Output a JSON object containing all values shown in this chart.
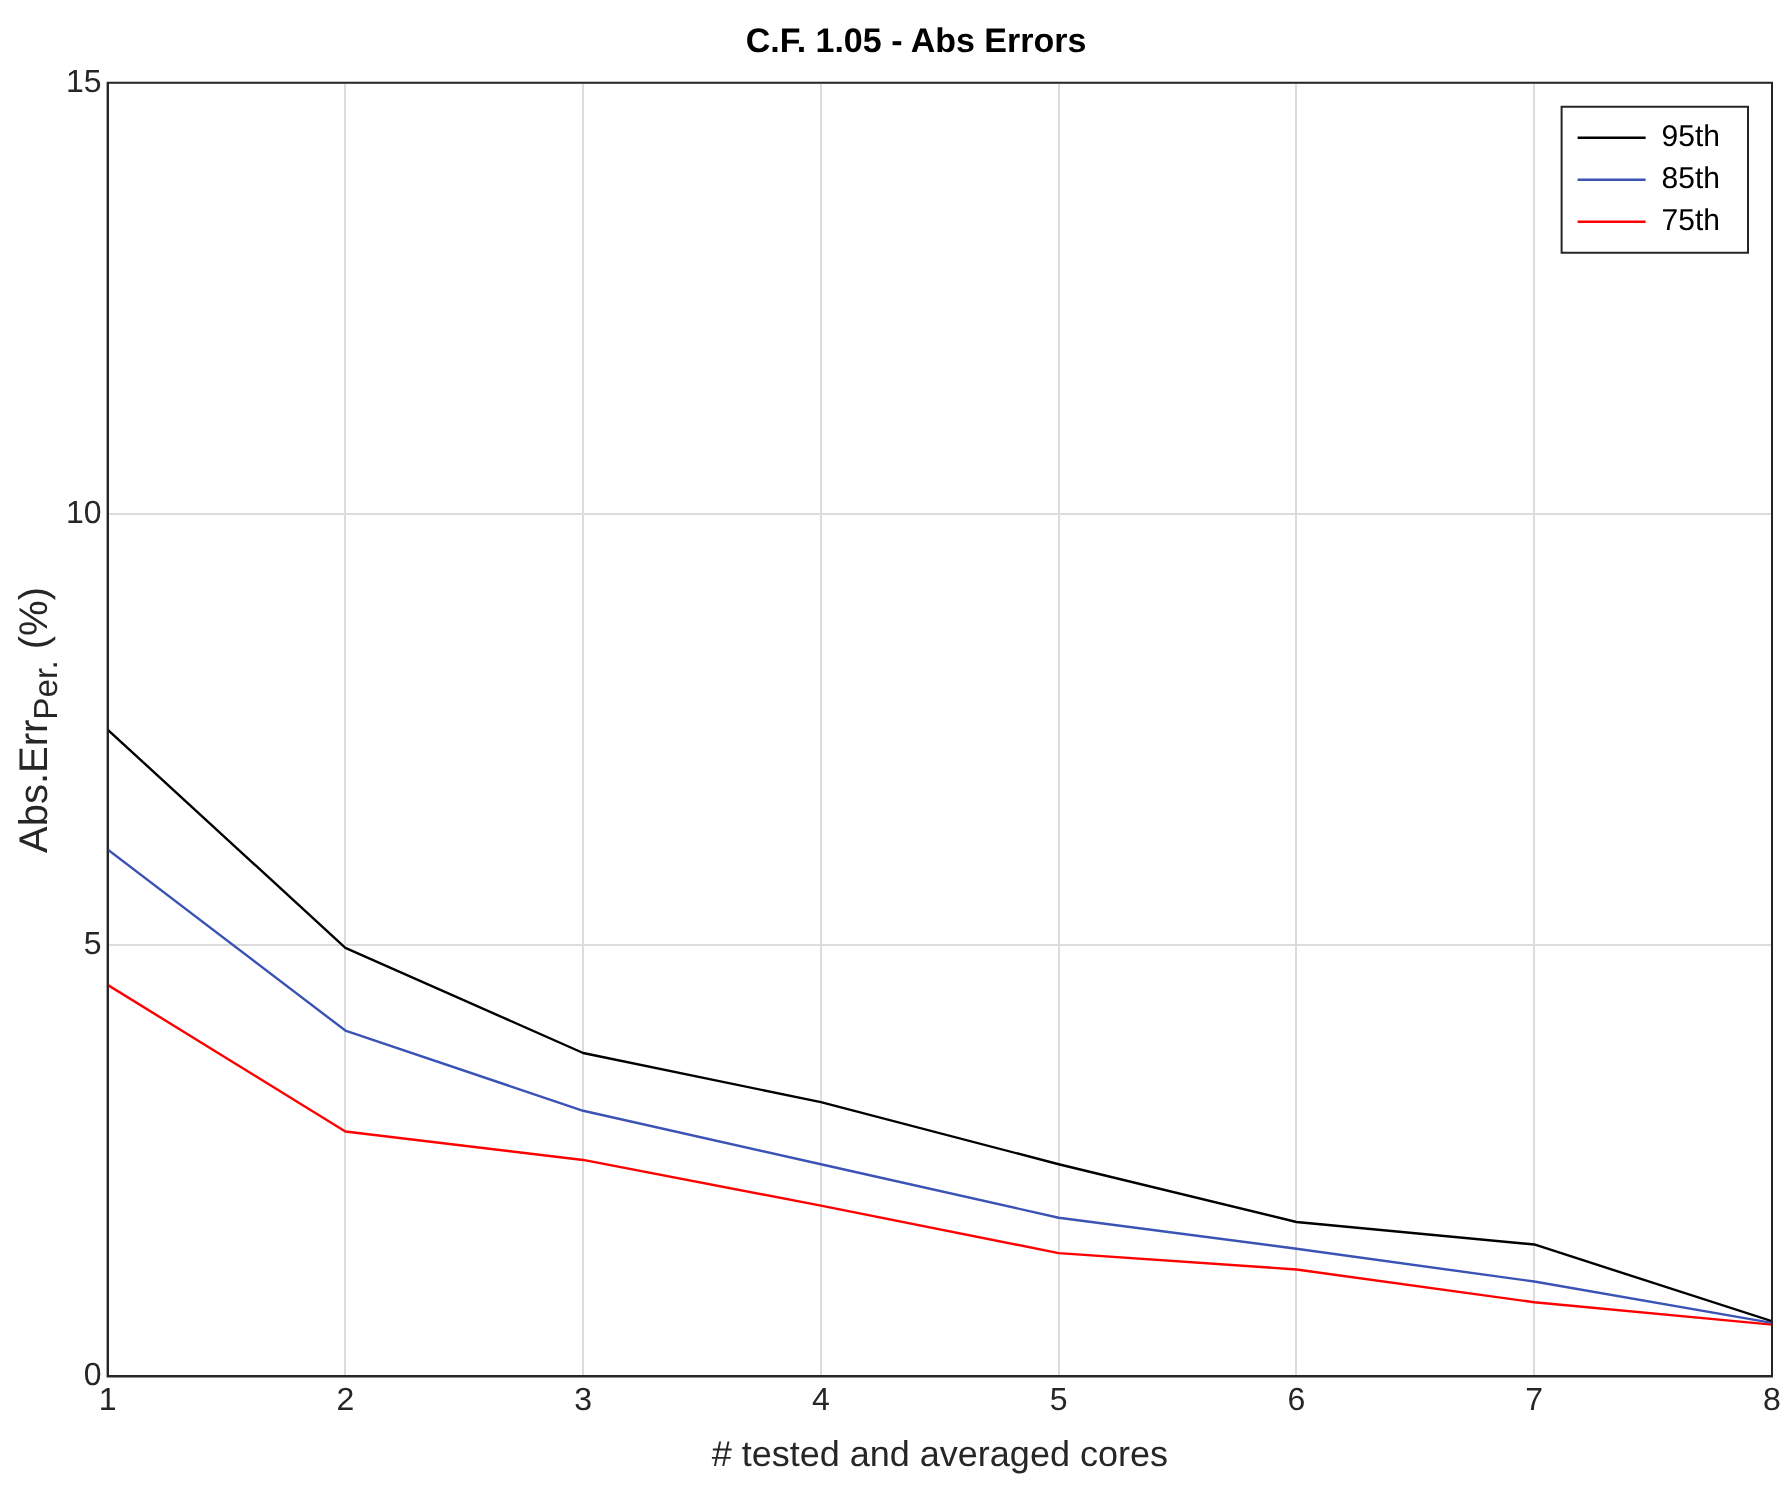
{
  "chart_data": {
    "type": "line",
    "title": "C.F. 1.05 - Abs Errors",
    "xlabel": "# tested and averaged cores",
    "ylabel": "Abs.Err$_{Per.}$ (%)",
    "x": [
      1,
      2,
      3,
      4,
      5,
      6,
      7,
      8
    ],
    "series": [
      {
        "name": "95th",
        "color": "#000000",
        "values": [
          7.5,
          4.97,
          3.75,
          3.18,
          2.46,
          1.79,
          1.53,
          0.64
        ]
      },
      {
        "name": "85th",
        "color": "#3a53b5",
        "values": [
          6.11,
          4.01,
          3.08,
          2.46,
          1.84,
          1.48,
          1.1,
          0.62
        ]
      },
      {
        "name": "75th",
        "color": "#ff0000",
        "values": [
          4.54,
          2.84,
          2.51,
          1.98,
          1.43,
          1.24,
          0.86,
          0.6
        ]
      }
    ],
    "xlim": [
      1,
      8
    ],
    "xticks": [
      1,
      2,
      3,
      4,
      5,
      6,
      7,
      8
    ],
    "ylim": [
      0,
      15
    ],
    "yticks": [
      0,
      5,
      10,
      15
    ],
    "grid": true,
    "legend": "top right",
    "marker": "none",
    "line_style": "solid"
  }
}
